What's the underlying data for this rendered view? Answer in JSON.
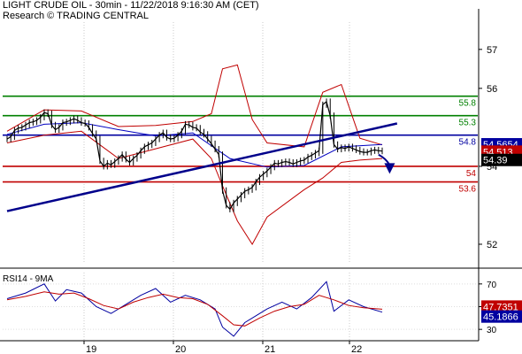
{
  "header": {
    "title": "LIGHT CRUDE OIL - 30min - 11/22/2018 9:16:30 AM (CET)",
    "source": "Research © TRADING CENTRAL"
  },
  "chart_data": [
    {
      "type": "line",
      "subtype": "candlestick-with-bollinger-and-moving-average",
      "title": "LIGHT CRUDE OIL - 30min - 11/22/2018 9:16:30 AM (CET)",
      "y_ticks": [
        52,
        54,
        56,
        57
      ],
      "x_ticks": [
        "19",
        "20",
        "21",
        "22"
      ],
      "ylim": [
        51.5,
        57.7
      ],
      "price_series": [
        [
          0,
          54.7
        ],
        [
          1,
          54.76
        ],
        [
          2,
          54.92
        ],
        [
          3,
          54.98
        ],
        [
          4,
          55.0
        ],
        [
          5,
          55.06
        ],
        [
          6,
          55.12
        ],
        [
          7,
          55.14
        ],
        [
          8,
          55.18
        ],
        [
          9,
          55.26
        ],
        [
          10,
          55.38
        ],
        [
          11,
          55.35
        ],
        [
          12,
          55.06
        ],
        [
          13,
          54.94
        ],
        [
          14,
          55.0
        ],
        [
          15,
          55.12
        ],
        [
          16,
          55.14
        ],
        [
          17,
          55.18
        ],
        [
          18,
          55.22
        ],
        [
          19,
          55.18
        ],
        [
          20,
          55.12
        ],
        [
          21,
          55.1
        ],
        [
          22,
          55.0
        ],
        [
          23,
          54.84
        ],
        [
          24,
          54.7
        ],
        [
          25,
          54.14
        ],
        [
          26,
          54.0
        ],
        [
          27,
          54.08
        ],
        [
          28,
          54.04
        ],
        [
          29,
          54.12
        ],
        [
          30,
          54.2
        ],
        [
          31,
          54.3
        ],
        [
          32,
          54.18
        ],
        [
          33,
          54.1
        ],
        [
          34,
          54.2
        ],
        [
          35,
          54.28
        ],
        [
          36,
          54.4
        ],
        [
          37,
          54.5
        ],
        [
          38,
          54.55
        ],
        [
          39,
          54.6
        ],
        [
          40,
          54.7
        ],
        [
          41,
          54.8
        ],
        [
          42,
          54.86
        ],
        [
          43,
          54.74
        ],
        [
          44,
          54.7
        ],
        [
          45,
          54.72
        ],
        [
          46,
          54.8
        ],
        [
          47,
          54.9
        ],
        [
          48,
          55.08
        ],
        [
          49,
          55.06
        ],
        [
          50,
          55.0
        ],
        [
          51,
          54.98
        ],
        [
          52,
          54.88
        ],
        [
          53,
          54.82
        ],
        [
          54,
          54.7
        ],
        [
          55,
          54.58
        ],
        [
          56,
          54.44
        ],
        [
          57,
          54.3
        ],
        [
          58,
          53.38
        ],
        [
          59,
          53.0
        ],
        [
          60,
          52.9
        ],
        [
          61,
          53.06
        ],
        [
          62,
          53.16
        ],
        [
          63,
          53.26
        ],
        [
          64,
          53.36
        ],
        [
          65,
          53.4
        ],
        [
          66,
          53.46
        ],
        [
          67,
          53.6
        ],
        [
          68,
          53.72
        ],
        [
          69,
          53.8
        ],
        [
          70,
          53.88
        ],
        [
          71,
          53.98
        ],
        [
          72,
          54.08
        ],
        [
          73,
          54.06
        ],
        [
          74,
          54.1
        ],
        [
          75,
          54.12
        ],
        [
          76,
          54.1
        ],
        [
          77,
          54.06
        ],
        [
          78,
          54.1
        ],
        [
          79,
          54.14
        ],
        [
          80,
          54.16
        ],
        [
          81,
          54.24
        ],
        [
          82,
          54.28
        ],
        [
          83,
          54.34
        ],
        [
          84,
          54.4
        ],
        [
          85,
          55.58
        ],
        [
          86,
          55.66
        ],
        [
          87,
          55.3
        ],
        [
          88,
          54.56
        ],
        [
          89,
          54.44
        ],
        [
          90,
          54.48
        ],
        [
          91,
          54.46
        ],
        [
          92,
          54.5
        ],
        [
          93,
          54.46
        ],
        [
          94,
          54.42
        ],
        [
          95,
          54.38
        ],
        [
          96,
          54.36
        ],
        [
          97,
          54.36
        ],
        [
          98,
          54.4
        ],
        [
          99,
          54.42
        ],
        [
          100,
          54.4
        ],
        [
          101,
          54.39
        ]
      ],
      "price_x_range": [
        0,
        101
      ],
      "moving_average": [
        [
          0,
          54.82
        ],
        [
          10,
          55.08
        ],
        [
          20,
          55.12
        ],
        [
          30,
          54.94
        ],
        [
          40,
          54.78
        ],
        [
          50,
          54.86
        ],
        [
          60,
          54.2
        ],
        [
          70,
          53.98
        ],
        [
          80,
          54.02
        ],
        [
          90,
          54.5
        ],
        [
          101,
          54.56
        ]
      ],
      "bollinger_upper": [
        [
          0,
          54.9
        ],
        [
          10,
          55.45
        ],
        [
          20,
          55.42
        ],
        [
          30,
          55.02
        ],
        [
          40,
          55.05
        ],
        [
          50,
          55.15
        ],
        [
          55,
          55.35
        ],
        [
          58,
          56.5
        ],
        [
          62,
          56.6
        ],
        [
          66,
          55.2
        ],
        [
          70,
          54.6
        ],
        [
          80,
          54.5
        ],
        [
          85,
          55.9
        ],
        [
          90,
          56.1
        ],
        [
          95,
          54.72
        ],
        [
          101,
          54.55
        ]
      ],
      "bollinger_lower": [
        [
          0,
          54.6
        ],
        [
          10,
          54.8
        ],
        [
          20,
          54.9
        ],
        [
          30,
          54.2
        ],
        [
          40,
          54.45
        ],
        [
          50,
          54.7
        ],
        [
          55,
          54.2
        ],
        [
          58,
          53.5
        ],
        [
          62,
          52.6
        ],
        [
          66,
          52.0
        ],
        [
          70,
          52.7
        ],
        [
          80,
          53.4
        ],
        [
          85,
          53.7
        ],
        [
          90,
          54.1
        ],
        [
          95,
          54.16
        ],
        [
          101,
          54.2
        ]
      ],
      "horizontal_levels": [
        {
          "value": 55.8,
          "label": "55.8",
          "color": "#008000"
        },
        {
          "value": 55.3,
          "label": "55.3",
          "color": "#008000"
        },
        {
          "value": 54.8,
          "label": "54.8",
          "color": "#0000a0"
        },
        {
          "value": 54.0,
          "label": "54",
          "color": "#c00000"
        },
        {
          "value": 53.6,
          "label": "53.6",
          "color": "#c00000"
        }
      ],
      "trendline": {
        "from": [
          0,
          52.85
        ],
        "to": [
          105,
          55.1
        ],
        "color": "#00008b",
        "note": "rising support line"
      },
      "forecast_arrow": {
        "from": [
          100,
          54.3
        ],
        "to": [
          103,
          53.9
        ],
        "color": "#00008b"
      },
      "price_tags": [
        {
          "value": 54.5654,
          "label": "54.5654",
          "color": "#0000a0"
        },
        {
          "value": 54.513,
          "label": "54.513",
          "color": "#c00000"
        },
        {
          "value": 54.39,
          "label": "54.39",
          "color": "#000000"
        }
      ],
      "colors": {
        "price": "#000000",
        "moving_average": "#0000c0",
        "bollinger": "#c00000",
        "axis": "#000000"
      }
    },
    {
      "type": "line",
      "title": "RSI14 - 9MA",
      "y_ticks": [
        30,
        50,
        70
      ],
      "ylim": [
        20,
        80
      ],
      "series": [
        {
          "name": "RSI14",
          "color": "#0000a0",
          "values": [
            [
              0,
              57
            ],
            [
              5,
              62
            ],
            [
              10,
              70
            ],
            [
              13,
              55
            ],
            [
              16,
              65
            ],
            [
              20,
              62
            ],
            [
              24,
              50
            ],
            [
              28,
              44
            ],
            [
              32,
              52
            ],
            [
              36,
              60
            ],
            [
              40,
              66
            ],
            [
              44,
              54
            ],
            [
              48,
              60
            ],
            [
              52,
              56
            ],
            [
              56,
              48
            ],
            [
              58,
              32
            ],
            [
              61,
              24
            ],
            [
              64,
              36
            ],
            [
              67,
              42
            ],
            [
              70,
              48
            ],
            [
              74,
              54
            ],
            [
              78,
              48
            ],
            [
              82,
              58
            ],
            [
              86,
              72
            ],
            [
              88,
              46
            ],
            [
              92,
              56
            ],
            [
              96,
              50
            ],
            [
              101,
              45.1866
            ]
          ]
        },
        {
          "name": "9MA",
          "color": "#c00000",
          "values": [
            [
              0,
              56
            ],
            [
              5,
              59
            ],
            [
              10,
              63
            ],
            [
              14,
              61
            ],
            [
              18,
              62
            ],
            [
              22,
              57
            ],
            [
              26,
              51
            ],
            [
              30,
              48
            ],
            [
              34,
              54
            ],
            [
              38,
              58
            ],
            [
              42,
              61
            ],
            [
              46,
              58
            ],
            [
              50,
              57
            ],
            [
              54,
              52
            ],
            [
              58,
              42
            ],
            [
              61,
              34
            ],
            [
              64,
              33
            ],
            [
              68,
              40
            ],
            [
              72,
              46
            ],
            [
              76,
              50
            ],
            [
              80,
              52
            ],
            [
              84,
              60
            ],
            [
              88,
              56
            ],
            [
              92,
              51
            ],
            [
              96,
              49
            ],
            [
              101,
              47.7351
            ]
          ]
        }
      ],
      "price_tags": [
        {
          "value": 47.7351,
          "label": "47.7351",
          "color": "#c00000"
        },
        {
          "value": 45.1866,
          "label": "45.1866",
          "color": "#0000a0"
        }
      ]
    }
  ]
}
